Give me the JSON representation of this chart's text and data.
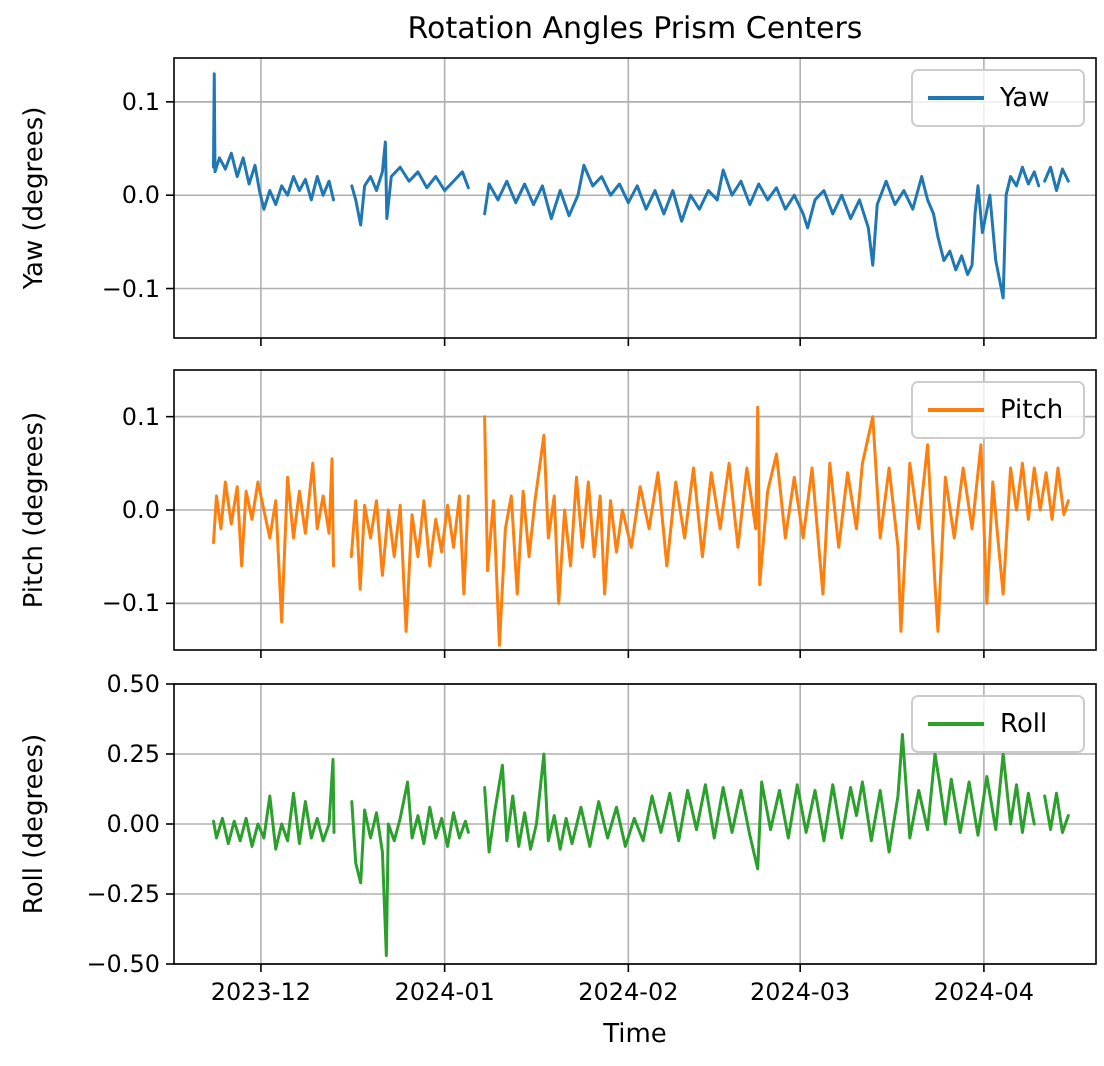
{
  "chart_data": [
    {
      "type": "line",
      "title": "Rotation Angles Prism Centers",
      "ylabel": "Yaw (degrees)",
      "xlim": [
        "2023-11-16T08:00",
        "2024-04-19T22:00"
      ],
      "xticks": [
        {
          "value": "2023-12-01",
          "label": null
        },
        {
          "value": "2024-01-01",
          "label": null
        },
        {
          "value": "2024-02-01",
          "label": null
        },
        {
          "value": "2024-03-01",
          "label": null
        },
        {
          "value": "2024-04-01",
          "label": null
        }
      ],
      "ylim": [
        -0.153,
        0.147
      ],
      "yticks": [
        {
          "value": -0.1,
          "label": "−0.1"
        },
        {
          "value": 0,
          "label": "0.0"
        },
        {
          "value": 0.1,
          "label": "0.1"
        }
      ],
      "grid": true,
      "legend": "top right",
      "tick_labels": "y",
      "series": [
        {
          "name": "Yaw",
          "color": "#1f77b4",
          "x": [
            "2023-11-23T00:00",
            "2023-11-23T03:00",
            "2023-11-23T06:00",
            "2023-11-24T00:00",
            "2023-11-25T00:00",
            "2023-11-26T00:00",
            "2023-11-27T00:00",
            "2023-11-28T00:00",
            "2023-11-29T00:00",
            "2023-11-30T00:00",
            "2023-11-30T18:00",
            "2023-12-01T12:00",
            "2023-12-02T12:00",
            "2023-12-03T12:00",
            "2023-12-04T12:00",
            "2023-12-05T12:00",
            "2023-12-06T12:00",
            "2023-12-07T12:00",
            "2023-12-08T12:00",
            "2023-12-09T12:00",
            "2023-12-10T12:00",
            "2023-12-11T12:00",
            "2023-12-12T12:00",
            "2023-12-13T06:00",
            "2023-12-15T00:00",
            "2023-12-16T08:00",
            "2023-12-17T00:00",
            "2023-12-17T20:00",
            "2023-12-18T12:00",
            "2023-12-19T12:00",
            "2023-12-20T12:00",
            "2023-12-21T12:00",
            "2023-12-22T00:00",
            "2023-12-22T06:00",
            "2023-12-23T00:00",
            "2023-12-24T12:00",
            "2023-12-26T00:00",
            "2023-12-27T12:00",
            "2023-12-29T00:00",
            "2023-12-30T12:00",
            "2024-01-01T00:00",
            "2024-01-02T12:00",
            "2024-01-04T00:00",
            "2024-01-05T00:00",
            "2024-01-06T12:00",
            "2024-01-07T18:00",
            "2024-01-08T12:00",
            "2024-01-10T00:00",
            "2024-01-11T12:00",
            "2024-01-13T00:00",
            "2024-01-14T12:00",
            "2024-01-16T00:00",
            "2024-01-17T12:00",
            "2024-01-19T00:00",
            "2024-01-20T12:00",
            "2024-01-22T00:00",
            "2024-01-23T12:00",
            "2024-01-24T12:00",
            "2024-01-26T00:00",
            "2024-01-27T12:00",
            "2024-01-29T00:00",
            "2024-01-30T12:00",
            "2024-02-01T00:00",
            "2024-02-02T12:00",
            "2024-02-04T00:00",
            "2024-02-05T12:00",
            "2024-02-07T00:00",
            "2024-02-08T12:00",
            "2024-02-10T00:00",
            "2024-02-11T12:00",
            "2024-02-13T00:00",
            "2024-02-14T12:00",
            "2024-02-16T00:00",
            "2024-02-17T00:00",
            "2024-02-18T12:00",
            "2024-02-20T00:00",
            "2024-02-21T12:00",
            "2024-02-23T00:00",
            "2024-02-24T12:00",
            "2024-02-26T00:00",
            "2024-02-27T12:00",
            "2024-02-29T00:00",
            "2024-03-01T12:00",
            "2024-03-02T06:00",
            "2024-03-03T12:00",
            "2024-03-05T00:00",
            "2024-03-06T12:00",
            "2024-03-08T00:00",
            "2024-03-09T12:00",
            "2024-03-11T00:00",
            "2024-03-12T12:00",
            "2024-03-13T06:00",
            "2024-03-14T00:00",
            "2024-03-15T12:00",
            "2024-03-17T00:00",
            "2024-03-18T12:00",
            "2024-03-20T00:00",
            "2024-03-21T12:00",
            "2024-03-22T12:00",
            "2024-03-23T12:00",
            "2024-03-24T06:00",
            "2024-03-25T06:00",
            "2024-03-26T06:00",
            "2024-03-27T06:00",
            "2024-03-28T06:00",
            "2024-03-29T06:00",
            "2024-03-30T00:00",
            "2024-03-30T12:00",
            "2024-03-31T00:00",
            "2024-03-31T18:00",
            "2024-04-02T00:00",
            "2024-04-03T00:00",
            "2024-04-04T06:00",
            "2024-04-04T18:00",
            "2024-04-05T12:00",
            "2024-04-06T12:00",
            "2024-04-07T12:00",
            "2024-04-08T12:00",
            "2024-04-09T12:00",
            "2024-04-10T06:00",
            "2024-04-10T18:00",
            "2024-04-11T06:00",
            "2024-04-12T06:00",
            "2024-04-13T06:00",
            "2024-04-14T06:00",
            "2024-04-15T06:00"
          ],
          "values": [
            0.03,
            0.13,
            0.025,
            0.04,
            0.028,
            0.045,
            0.02,
            0.04,
            0.012,
            0.032,
            0.005,
            -0.015,
            0.005,
            -0.01,
            0.01,
            0.0,
            0.02,
            0.005,
            0.017,
            -0.005,
            0.02,
            0.0,
            0.015,
            -0.005,
            null,
            0.01,
            -0.005,
            -0.032,
            0.01,
            0.02,
            0.005,
            0.025,
            0.057,
            -0.025,
            0.02,
            0.03,
            0.015,
            0.025,
            0.008,
            0.02,
            0.005,
            0.015,
            0.025,
            0.008,
            null,
            -0.02,
            0.012,
            -0.005,
            0.015,
            -0.008,
            0.012,
            -0.01,
            0.01,
            -0.025,
            0.005,
            -0.022,
            0.0,
            0.032,
            0.01,
            0.02,
            0.0,
            0.012,
            -0.008,
            0.01,
            -0.015,
            0.005,
            -0.02,
            0.005,
            -0.028,
            0.0,
            -0.015,
            0.005,
            -0.005,
            0.027,
            0.0,
            0.015,
            -0.01,
            0.012,
            -0.005,
            0.008,
            -0.015,
            0.0,
            -0.02,
            -0.035,
            -0.005,
            0.005,
            -0.02,
            0.0,
            -0.025,
            -0.005,
            -0.035,
            -0.075,
            -0.01,
            0.015,
            -0.01,
            0.005,
            -0.015,
            0.02,
            -0.005,
            -0.02,
            -0.045,
            -0.07,
            -0.06,
            -0.08,
            -0.065,
            -0.085,
            -0.075,
            -0.02,
            0.01,
            -0.04,
            0.0,
            -0.07,
            -0.11,
            0.0,
            0.02,
            0.01,
            0.03,
            0.012,
            0.025,
            0.01,
            null,
            0.015,
            0.03,
            0.005,
            0.028,
            0.015
          ]
        }
      ]
    },
    {
      "type": "line",
      "ylabel": "Pitch (degrees)",
      "xlim": [
        "2023-11-16T08:00",
        "2024-04-19T22:00"
      ],
      "xticks": [
        {
          "value": "2023-12-01",
          "label": null
        },
        {
          "value": "2024-01-01",
          "label": null
        },
        {
          "value": "2024-02-01",
          "label": null
        },
        {
          "value": "2024-03-01",
          "label": null
        },
        {
          "value": "2024-04-01",
          "label": null
        }
      ],
      "ylim": [
        -0.15,
        0.15
      ],
      "yticks": [
        {
          "value": -0.1,
          "label": "−0.1"
        },
        {
          "value": 0,
          "label": "0.0"
        },
        {
          "value": 0.1,
          "label": "0.1"
        }
      ],
      "grid": true,
      "legend": "top right",
      "tick_labels": "y",
      "series": [
        {
          "name": "Pitch",
          "color": "#ff7f0e",
          "x": [
            "2023-11-23T00:00",
            "2023-11-23T12:00",
            "2023-11-24T06:00",
            "2023-11-25T00:00",
            "2023-11-26T00:00",
            "2023-11-27T00:00",
            "2023-11-27T18:00",
            "2023-11-28T12:00",
            "2023-11-29T12:00",
            "2023-11-30T12:00",
            "2023-12-01T12:00",
            "2023-12-02T12:00",
            "2023-12-03T12:00",
            "2023-12-04T12:00",
            "2023-12-05T12:00",
            "2023-12-06T12:00",
            "2023-12-07T12:00",
            "2023-12-08T12:00",
            "2023-12-09T18:00",
            "2023-12-10T12:00",
            "2023-12-11T12:00",
            "2023-12-12T12:00",
            "2023-12-13T00:00",
            "2023-12-13T06:00",
            "2023-12-14T18:00",
            "2023-12-16T06:00",
            "2023-12-17T00:00",
            "2023-12-17T18:00",
            "2023-12-18T12:00",
            "2023-12-19T12:00",
            "2023-12-20T12:00",
            "2023-12-21T12:00",
            "2023-12-22T12:00",
            "2023-12-23T12:00",
            "2023-12-24T12:00",
            "2023-12-25T12:00",
            "2023-12-26T12:00",
            "2023-12-27T12:00",
            "2023-12-28T12:00",
            "2023-12-29T12:00",
            "2023-12-30T12:00",
            "2023-12-31T12:00",
            "2024-01-01T12:00",
            "2024-01-02T12:00",
            "2024-01-03T12:00",
            "2024-01-04T06:00",
            "2024-01-05T00:00",
            "2024-01-06T12:00",
            "2024-01-07T18:00",
            "2024-01-08T06:00",
            "2024-01-09T06:00",
            "2024-01-10T06:00",
            "2024-01-11T06:00",
            "2024-01-12T06:00",
            "2024-01-13T06:00",
            "2024-01-14T06:00",
            "2024-01-15T06:00",
            "2024-01-16T06:00",
            "2024-01-17T18:00",
            "2024-01-18T12:00",
            "2024-01-19T12:00",
            "2024-01-20T06:00",
            "2024-01-21T06:00",
            "2024-01-22T06:00",
            "2024-01-23T06:00",
            "2024-01-24T06:00",
            "2024-01-25T06:00",
            "2024-01-26T06:00",
            "2024-01-27T06:00",
            "2024-01-28T00:00",
            "2024-01-29T00:00",
            "2024-01-30T00:00",
            "2024-01-31T00:00",
            "2024-02-01T12:00",
            "2024-02-03T00:00",
            "2024-02-04T12:00",
            "2024-02-06T00:00",
            "2024-02-07T12:00",
            "2024-02-09T00:00",
            "2024-02-10T12:00",
            "2024-02-12T00:00",
            "2024-02-13T12:00",
            "2024-02-15T00:00",
            "2024-02-16T12:00",
            "2024-02-18T00:00",
            "2024-02-19T12:00",
            "2024-02-21T00:00",
            "2024-02-22T12:00",
            "2024-02-22T20:00",
            "2024-02-23T04:00",
            "2024-02-24T12:00",
            "2024-02-26T00:00",
            "2024-02-27T12:00",
            "2024-02-29T00:00",
            "2024-03-01T12:00",
            "2024-03-03T00:00",
            "2024-03-04T20:00",
            "2024-03-06T00:00",
            "2024-03-07T12:00",
            "2024-03-09T00:00",
            "2024-03-10T12:00",
            "2024-03-11T12:00",
            "2024-03-13T06:00",
            "2024-03-14T12:00",
            "2024-03-16T00:00",
            "2024-03-17T12:00",
            "2024-03-18T00:00",
            "2024-03-19T12:00",
            "2024-03-21T00:00",
            "2024-03-22T12:00",
            "2024-03-23T18:00",
            "2024-03-24T06:00",
            "2024-03-25T12:00",
            "2024-03-27T00:00",
            "2024-03-28T12:00",
            "2024-03-30T00:00",
            "2024-03-31T12:00",
            "2024-04-01T12:00",
            "2024-04-02T12:00",
            "2024-04-03T12:00",
            "2024-04-04T06:00",
            "2024-04-05T12:00",
            "2024-04-06T12:00",
            "2024-04-07T12:00",
            "2024-04-08T12:00",
            "2024-04-09T12:00",
            "2024-04-10T12:00",
            "2024-04-11T12:00",
            "2024-04-12T12:00",
            "2024-04-13T12:00",
            "2024-04-14T12:00",
            "2024-04-15T06:00"
          ],
          "values": [
            -0.035,
            0.015,
            -0.02,
            0.03,
            -0.015,
            0.025,
            -0.06,
            0.02,
            -0.01,
            0.03,
            0.0,
            -0.03,
            0.01,
            -0.12,
            0.035,
            -0.03,
            0.02,
            -0.025,
            0.05,
            -0.02,
            0.015,
            -0.025,
            0.055,
            -0.06,
            null,
            -0.05,
            0.01,
            -0.085,
            0.005,
            -0.03,
            0.01,
            -0.07,
            0.0,
            -0.05,
            0.005,
            -0.13,
            -0.005,
            -0.05,
            0.01,
            -0.06,
            -0.01,
            -0.045,
            0.005,
            -0.04,
            0.015,
            -0.09,
            0.015,
            null,
            0.1,
            -0.065,
            0.01,
            -0.145,
            -0.02,
            0.015,
            -0.09,
            0.02,
            -0.05,
            0.01,
            0.08,
            -0.03,
            0.015,
            -0.1,
            0.0,
            -0.06,
            0.035,
            -0.04,
            0.03,
            -0.05,
            0.015,
            -0.09,
            0.01,
            -0.045,
            0.0,
            -0.04,
            0.025,
            -0.02,
            0.04,
            -0.06,
            0.03,
            -0.03,
            0.045,
            -0.05,
            0.04,
            -0.02,
            0.05,
            -0.04,
            0.045,
            -0.02,
            0.11,
            -0.08,
            0.02,
            0.06,
            -0.03,
            0.035,
            -0.03,
            0.045,
            -0.09,
            0.05,
            -0.04,
            0.04,
            -0.02,
            0.05,
            0.1,
            -0.03,
            0.045,
            -0.04,
            -0.13,
            0.05,
            -0.02,
            0.07,
            -0.08,
            -0.13,
            0.035,
            -0.03,
            0.045,
            -0.02,
            0.07,
            -0.1,
            0.03,
            -0.04,
            -0.09,
            0.045,
            0.0,
            0.05,
            -0.01,
            0.045,
            0.0,
            0.04,
            -0.01,
            0.045,
            -0.005,
            0.01
          ]
        }
      ]
    },
    {
      "type": "line",
      "ylabel": "Roll (degrees)",
      "xlabel": "Time",
      "xlim": [
        "2023-11-16T08:00",
        "2024-04-19T22:00"
      ],
      "xticks": [
        {
          "value": "2023-12-01",
          "label": "2023-12"
        },
        {
          "value": "2024-01-01",
          "label": "2024-01"
        },
        {
          "value": "2024-02-01",
          "label": "2024-02"
        },
        {
          "value": "2024-03-01",
          "label": "2024-03"
        },
        {
          "value": "2024-04-01",
          "label": "2024-04"
        }
      ],
      "ylim": [
        -0.5,
        0.5
      ],
      "yticks": [
        {
          "value": -0.5,
          "label": "−0.50"
        },
        {
          "value": -0.25,
          "label": "−0.25"
        },
        {
          "value": 0,
          "label": "0.00"
        },
        {
          "value": 0.25,
          "label": "0.25"
        },
        {
          "value": 0.5,
          "label": "0.50"
        }
      ],
      "grid": true,
      "legend": "top right",
      "series": [
        {
          "name": "Roll",
          "color": "#2ca02c",
          "x": [
            "2023-11-23T00:00",
            "2023-11-23T12:00",
            "2023-11-24T12:00",
            "2023-11-25T12:00",
            "2023-11-26T12:00",
            "2023-11-27T12:00",
            "2023-11-28T12:00",
            "2023-11-29T12:00",
            "2023-11-30T12:00",
            "2023-12-01T12:00",
            "2023-12-02T12:00",
            "2023-12-03T12:00",
            "2023-12-04T12:00",
            "2023-12-05T12:00",
            "2023-12-06T12:00",
            "2023-12-07T12:00",
            "2023-12-08T12:00",
            "2023-12-09T12:00",
            "2023-12-10T12:00",
            "2023-12-11T12:00",
            "2023-12-12T12:00",
            "2023-12-13T04:00",
            "2023-12-13T08:00",
            "2023-12-15T00:00",
            "2023-12-16T08:00",
            "2023-12-17T00:00",
            "2023-12-17T20:00",
            "2023-12-18T12:00",
            "2023-12-19T12:00",
            "2023-12-20T12:00",
            "2023-12-21T12:00",
            "2023-12-22T04:00",
            "2023-12-22T12:00",
            "2023-12-23T12:00",
            "2023-12-24T12:00",
            "2023-12-25T18:00",
            "2023-12-26T12:00",
            "2023-12-27T12:00",
            "2023-12-28T12:00",
            "2023-12-29T12:00",
            "2023-12-30T12:00",
            "2023-12-31T12:00",
            "2024-01-01T12:00",
            "2024-01-02T12:00",
            "2024-01-03T12:00",
            "2024-01-04T12:00",
            "2024-01-05T00:00",
            "2024-01-06T12:00",
            "2024-01-07T18:00",
            "2024-01-08T12:00",
            "2024-01-09T12:00",
            "2024-01-10T18:00",
            "2024-01-11T12:00",
            "2024-01-12T12:00",
            "2024-01-13T12:00",
            "2024-01-14T12:00",
            "2024-01-15T12:00",
            "2024-01-16T12:00",
            "2024-01-17T18:00",
            "2024-01-18T12:00",
            "2024-01-19T12:00",
            "2024-01-20T12:00",
            "2024-01-21T12:00",
            "2024-01-22T12:00",
            "2024-01-24T00:00",
            "2024-01-25T12:00",
            "2024-01-27T00:00",
            "2024-01-28T12:00",
            "2024-01-30T00:00",
            "2024-01-31T12:00",
            "2024-02-02T00:00",
            "2024-02-03T12:00",
            "2024-02-05T00:00",
            "2024-02-06T12:00",
            "2024-02-08T00:00",
            "2024-02-09T12:00",
            "2024-02-11T00:00",
            "2024-02-12T12:00",
            "2024-02-14T00:00",
            "2024-02-15T12:00",
            "2024-02-17T00:00",
            "2024-02-18T12:00",
            "2024-02-20T00:00",
            "2024-02-21T12:00",
            "2024-02-22T20:00",
            "2024-02-23T12:00",
            "2024-02-25T00:00",
            "2024-02-26T12:00",
            "2024-02-28T00:00",
            "2024-02-29T12:00",
            "2024-03-02T00:00",
            "2024-03-03T12:00",
            "2024-03-05T00:00",
            "2024-03-06T12:00",
            "2024-03-08T00:00",
            "2024-03-09T12:00",
            "2024-03-10T12:00",
            "2024-03-11T12:00",
            "2024-03-13T00:00",
            "2024-03-14T12:00",
            "2024-03-16T00:00",
            "2024-03-17T12:00",
            "2024-03-18T06:00",
            "2024-03-19T12:00",
            "2024-03-21T00:00",
            "2024-03-22T12:00",
            "2024-03-23T18:00",
            "2024-03-24T12:00",
            "2024-03-25T12:00",
            "2024-03-26T12:00",
            "2024-03-28T00:00",
            "2024-03-29T12:00",
            "2024-03-31T00:00",
            "2024-04-01T12:00",
            "2024-04-03T00:00",
            "2024-04-04T06:00",
            "2024-04-05T12:00",
            "2024-04-06T12:00",
            "2024-04-07T12:00",
            "2024-04-08T12:00",
            "2024-04-09T12:00",
            "2024-04-10T06:00",
            "2024-04-11T06:00",
            "2024-04-12T06:00",
            "2024-04-13T06:00",
            "2024-04-14T06:00",
            "2024-04-15T06:00"
          ],
          "values": [
            0.01,
            -0.05,
            0.02,
            -0.07,
            0.01,
            -0.06,
            0.02,
            -0.08,
            0.0,
            -0.05,
            0.1,
            -0.09,
            0.0,
            -0.06,
            0.11,
            -0.07,
            0.08,
            -0.05,
            0.02,
            -0.06,
            0.0,
            0.23,
            -0.03,
            null,
            0.08,
            -0.14,
            -0.21,
            0.05,
            -0.05,
            0.04,
            -0.1,
            -0.47,
            0.0,
            -0.06,
            0.02,
            0.15,
            -0.05,
            0.03,
            -0.07,
            0.06,
            -0.05,
            0.02,
            -0.08,
            0.04,
            -0.05,
            0.01,
            -0.03,
            null,
            0.13,
            -0.1,
            0.05,
            0.21,
            -0.06,
            0.1,
            -0.08,
            0.04,
            -0.09,
            0.0,
            0.25,
            -0.06,
            0.03,
            -0.09,
            0.02,
            -0.07,
            0.06,
            -0.08,
            0.08,
            -0.05,
            0.06,
            -0.08,
            0.02,
            -0.06,
            0.1,
            -0.03,
            0.11,
            -0.06,
            0.12,
            -0.02,
            0.14,
            -0.05,
            0.13,
            -0.03,
            0.12,
            -0.04,
            -0.16,
            0.15,
            -0.02,
            0.12,
            -0.05,
            0.14,
            -0.03,
            0.12,
            -0.06,
            0.14,
            -0.05,
            0.13,
            0.03,
            0.15,
            -0.06,
            0.12,
            -0.1,
            0.1,
            0.32,
            -0.05,
            0.12,
            -0.02,
            0.25,
            0.15,
            0.0,
            0.16,
            -0.03,
            0.15,
            -0.04,
            0.17,
            -0.02,
            0.25,
            0.0,
            0.14,
            -0.03,
            0.11,
            0.0,
            null,
            0.1,
            -0.02,
            0.11,
            -0.03,
            0.03
          ]
        }
      ]
    }
  ]
}
